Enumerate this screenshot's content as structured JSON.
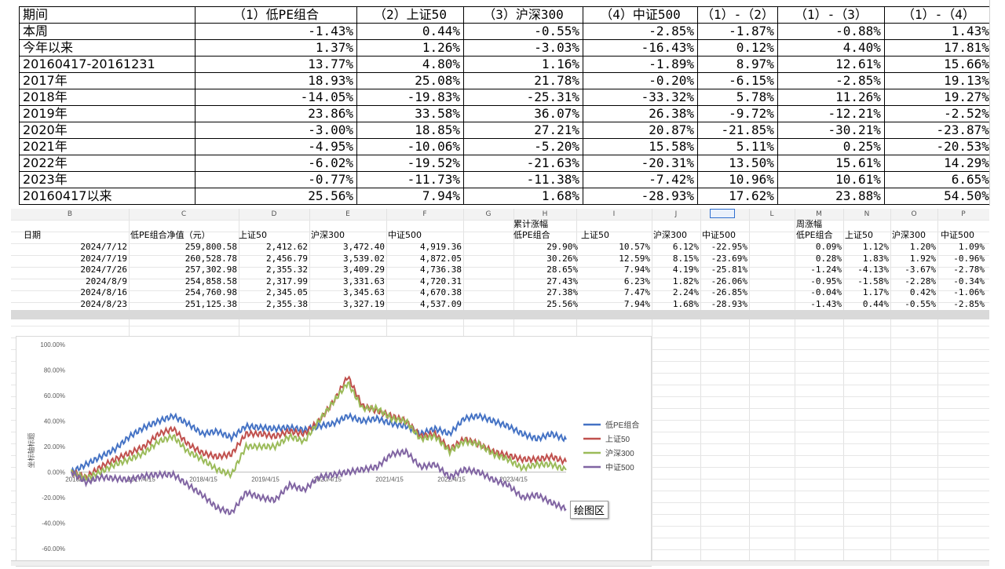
{
  "summary_table": {
    "header": [
      "期间",
      "（1）低PE组合",
      "（2）上证50",
      "（3）沪深300",
      "（4）中证500",
      "（1）-（2）",
      "（1）-（3）",
      "（1）-（4）"
    ],
    "rows": [
      [
        "本周",
        "-1.43%",
        "0.44%",
        "-0.55%",
        "-2.85%",
        "-1.87%",
        "-0.88%",
        "1.43%"
      ],
      [
        "今年以来",
        "1.37%",
        "1.26%",
        "-3.03%",
        "-16.43%",
        "0.12%",
        "4.40%",
        "17.81%"
      ],
      [
        "20160417-20161231",
        "13.77%",
        "4.80%",
        "1.16%",
        "-1.89%",
        "8.97%",
        "12.61%",
        "15.66%"
      ],
      [
        "2017年",
        "18.93%",
        "25.08%",
        "21.78%",
        "-0.20%",
        "-6.15%",
        "-2.85%",
        "19.13%"
      ],
      [
        "2018年",
        "-14.05%",
        "-19.83%",
        "-25.31%",
        "-33.32%",
        "5.78%",
        "11.26%",
        "19.27%"
      ],
      [
        "2019年",
        "23.86%",
        "33.58%",
        "36.07%",
        "26.38%",
        "-9.72%",
        "-12.21%",
        "-2.52%"
      ],
      [
        "2020年",
        "-3.00%",
        "18.85%",
        "27.21%",
        "20.87%",
        "-21.85%",
        "-30.21%",
        "-23.87%"
      ],
      [
        "2021年",
        "-4.95%",
        "-10.06%",
        "-5.20%",
        "15.58%",
        "5.11%",
        "0.25%",
        "-20.53%"
      ],
      [
        "2022年",
        "-6.02%",
        "-19.52%",
        "-21.63%",
        "-20.31%",
        "13.50%",
        "15.61%",
        "14.29%"
      ],
      [
        "2023年",
        "-0.77%",
        "-11.73%",
        "-11.38%",
        "-7.42%",
        "10.96%",
        "10.61%",
        "6.65%"
      ],
      [
        "20160417以来",
        "25.56%",
        "7.94%",
        "1.68%",
        "-28.93%",
        "17.62%",
        "23.88%",
        "54.50%"
      ]
    ]
  },
  "sheet": {
    "column_letters": [
      "B",
      "C",
      "D",
      "E",
      "F",
      "G",
      "H",
      "I",
      "J",
      "K",
      "L",
      "M",
      "N",
      "O",
      "P"
    ],
    "group_labels": {
      "cumulative": "累计涨幅",
      "weekly": "周涨幅"
    },
    "headers": {
      "date": "日期",
      "nav": "低PE组合净值（元）",
      "sz50": "上证50",
      "hs300": "沪深300",
      "zz500": "中证500",
      "cum_lowpe": "低PE组合",
      "cum_sz50": "上证50",
      "cum_hs300": "沪深300",
      "cum_zz500": "中证500",
      "wk_lowpe": "低PE组合",
      "wk_sz50": "上证50",
      "wk_hs300": "沪深300",
      "wk_zz500": "中证500"
    },
    "rows": [
      [
        "2024/7/12",
        "259,800.58",
        "2,412.62",
        "3,472.40",
        "4,919.36",
        "29.90%",
        "10.57%",
        "6.12%",
        "-22.95%",
        "0.09%",
        "1.12%",
        "1.20%",
        "1.09%"
      ],
      [
        "2024/7/19",
        "260,528.78",
        "2,456.79",
        "3,539.02",
        "4,872.05",
        "30.26%",
        "12.59%",
        "8.15%",
        "-23.69%",
        "0.28%",
        "1.83%",
        "1.92%",
        "-0.96%"
      ],
      [
        "2024/7/26",
        "257,302.98",
        "2,355.32",
        "3,409.29",
        "4,736.38",
        "28.65%",
        "7.94%",
        "4.19%",
        "-25.81%",
        "-1.24%",
        "-4.13%",
        "-3.67%",
        "-2.78%"
      ],
      [
        "2024/8/9",
        "254,858.58",
        "2,317.99",
        "3,331.63",
        "4,720.31",
        "27.43%",
        "6.23%",
        "1.82%",
        "-26.06%",
        "-0.95%",
        "-1.58%",
        "-2.28%",
        "-0.34%"
      ],
      [
        "2024/8/16",
        "254,760.98",
        "2,345.05",
        "3,345.63",
        "4,670.38",
        "27.38%",
        "7.47%",
        "2.24%",
        "-26.85%",
        "-0.04%",
        "1.17%",
        "0.42%",
        "-1.06%"
      ],
      [
        "2024/8/23",
        "251,125.38",
        "2,355.38",
        "3,327.19",
        "4,537.09",
        "25.56%",
        "7.94%",
        "1.68%",
        "-28.93%",
        "-1.43%",
        "0.44%",
        "-0.55%",
        "-2.85%"
      ]
    ]
  },
  "chart_data": {
    "type": "line",
    "title": "",
    "ylabel": "坐标轴标题",
    "xlabel": "",
    "ylim": [
      -60,
      100
    ],
    "yticks": [
      "100.00%",
      "80.00%",
      "60.00%",
      "40.00%",
      "20.00%",
      "0.00%",
      "-20.00%",
      "-40.00%",
      "-60.00%"
    ],
    "xticks": [
      "2016/4/15",
      "2017/4/15",
      "2018/4/15",
      "2019/4/15",
      "2020/4/15",
      "2021/4/15",
      "2022/4/15",
      "2023/4/15"
    ],
    "legend_position": "right",
    "x": [
      "2016/4",
      "2016/7",
      "2016/10",
      "2017/1",
      "2017/4",
      "2017/7",
      "2017/10",
      "2018/1",
      "2018/4",
      "2018/7",
      "2018/10",
      "2019/1",
      "2019/4",
      "2019/7",
      "2019/10",
      "2020/1",
      "2020/4",
      "2020/7",
      "2020/10",
      "2021/1",
      "2021/4",
      "2021/7",
      "2021/10",
      "2022/1",
      "2022/4",
      "2022/7",
      "2022/10",
      "2023/1",
      "2023/4",
      "2023/7",
      "2023/10",
      "2024/1",
      "2024/4",
      "2024/7",
      "2024/8/23"
    ],
    "series": [
      {
        "name": "低PE组合",
        "color": "#4472c4",
        "values": [
          0,
          6,
          12,
          18,
          28,
          35,
          40,
          44,
          38,
          30,
          32,
          27,
          36,
          35,
          34,
          35,
          33,
          36,
          38,
          44,
          40,
          42,
          38,
          36,
          30,
          34,
          30,
          42,
          44,
          40,
          36,
          30,
          26,
          30,
          25.56
        ]
      },
      {
        "name": "上证50",
        "color": "#c0504d",
        "values": [
          0,
          -4,
          4,
          10,
          15,
          20,
          30,
          34,
          22,
          15,
          12,
          14,
          30,
          30,
          28,
          32,
          30,
          40,
          55,
          75,
          52,
          48,
          44,
          40,
          28,
          30,
          18,
          26,
          22,
          16,
          13,
          10,
          10,
          12,
          7.94
        ]
      },
      {
        "name": "沪深300",
        "color": "#9bbb59",
        "values": [
          0,
          -5,
          0,
          6,
          10,
          15,
          24,
          28,
          16,
          10,
          2,
          -2,
          20,
          20,
          20,
          28,
          24,
          40,
          55,
          70,
          50,
          50,
          42,
          40,
          26,
          28,
          16,
          24,
          22,
          14,
          10,
          3,
          6,
          6,
          1.68
        ]
      },
      {
        "name": "中证500",
        "color": "#8064a2",
        "values": [
          0,
          -8,
          -4,
          -5,
          -6,
          -3,
          -2,
          -2,
          -10,
          -18,
          -28,
          -32,
          -16,
          -20,
          -22,
          -10,
          -14,
          -4,
          -2,
          0,
          2,
          4,
          14,
          16,
          4,
          6,
          -4,
          2,
          0,
          -6,
          -10,
          -20,
          -18,
          -24,
          -28.93
        ]
      }
    ]
  },
  "tooltip": {
    "text": "绘图区"
  }
}
